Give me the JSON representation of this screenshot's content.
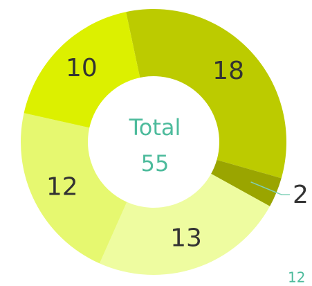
{
  "chart_data": {
    "type": "donut",
    "categories": [
      null,
      null,
      null,
      null,
      null
    ],
    "values": [
      18,
      2,
      13,
      12,
      10
    ],
    "colors": [
      "#bccb00",
      "#9aa500",
      "#eefca0",
      "#e6f870",
      "#dcf000"
    ],
    "center_label": "Total",
    "center_value": 55,
    "annotation": "12"
  }
}
